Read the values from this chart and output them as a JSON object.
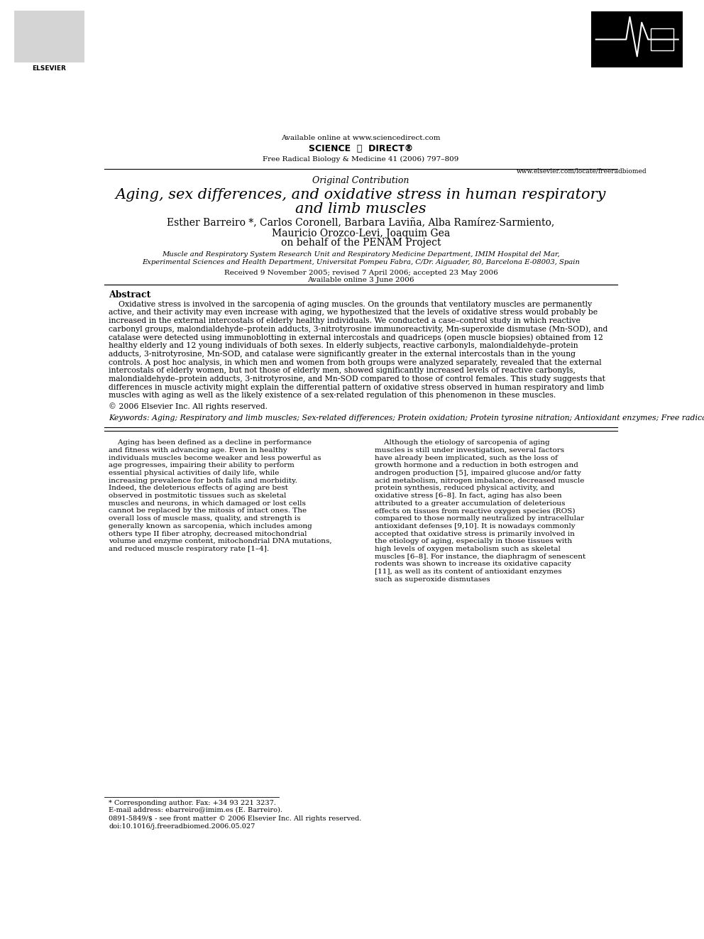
{
  "bg_color": "#ffffff",
  "header_available": "Available online at www.sciencedirect.com",
  "header_journal": "Free Radical Biology & Medicine 41 (2006) 797–809",
  "header_website": "www.elsevier.com/locate/freeradbiomed",
  "section_label": "Original Contribution",
  "title_line1": "Aging, sex differences, and oxidative stress in human respiratory",
  "title_line2": "and limb muscles",
  "authors_line1": "Esther Barreiro *, Carlos Coronell, Barbara Laviña, Alba Ramírez-Sarmiento,",
  "authors_line2": "Mauricio Orozco-Levi, Joaquim Gea",
  "authors_line3": "on behalf of the PENAM Project",
  "affil_line1": "Muscle and Respiratory System Research Unit and Respiratory Medicine Department, IMIM Hospital del Mar,",
  "affil_line2": "Experimental Sciences and Health Department, Universitat Pompeu Fabra, C/Dr. Aiguader, 80, Barcelona E-08003, Spain",
  "received": "Received 9 November 2005; revised 7 April 2006; accepted 23 May 2006",
  "available": "Available online 3 June 2006",
  "abstract_title": "Abstract",
  "abstract_text": "    Oxidative stress is involved in the sarcopenia of aging muscles. On the grounds that ventilatory muscles are permanently active, and their activity may even increase with aging, we hypothesized that the levels of oxidative stress would probably be increased in the external intercostals of elderly healthy individuals. We conducted a case–control study in which reactive carbonyl groups, malondialdehyde–protein adducts, 3-nitrotyrosine immunoreactivity, Mn-superoxide dismutase (Mn-SOD), and catalase were detected using immunoblotting in external intercostals and quadriceps (open muscle biopsies) obtained from 12 healthy elderly and 12 young individuals of both sexes. In elderly subjects, reactive carbonyls, malondialdehyde–protein adducts, 3-nitrotyrosine, Mn-SOD, and catalase were significantly greater in the external intercostals than in the young controls. A post hoc analysis, in which men and women from both groups were analyzed separately, revealed that the external intercostals of elderly women, but not those of elderly men, showed significantly increased levels of reactive carbonyls, malondialdehyde–protein adducts, 3-nitrotyrosine, and Mn-SOD compared to those of control females. This study suggests that differences in muscle activity might explain the differential pattern of oxidative stress observed in human respiratory and limb muscles with aging as well as the likely existence of a sex-related regulation of this phenomenon in these muscles.",
  "copyright": "© 2006 Elsevier Inc. All rights reserved.",
  "keywords": "Keywords: Aging; Respiratory and limb muscles; Sex-related differences; Protein oxidation; Protein tyrosine nitration; Antioxidant enzymes; Free radicals",
  "body_left_col": "    Aging has been defined as a decline in performance and fitness with advancing age. Even in healthy individuals muscles become weaker and less powerful as age progresses, impairing their ability to perform essential physical activities of daily life, while increasing prevalence for both falls and morbidity. Indeed, the deleterious effects of aging are best observed in postmitotic tissues such as skeletal muscles and neurons, in which damaged or lost cells cannot be replaced by the mitosis of intact ones. The overall loss of muscle mass, quality, and strength is generally known as sarcopenia, which includes among others type II fiber atrophy, decreased mitochondrial volume and enzyme content, mitochondrial DNA mutations, and reduced muscle respiratory rate [1–4].",
  "body_right_col": "    Although the etiology of sarcopenia of aging muscles is still under investigation, several factors have already been implicated, such as the loss of growth hormone and a reduction in both estrogen and androgen production [5], impaired glucose and/or fatty acid metabolism, nitrogen imbalance, decreased muscle protein synthesis, reduced physical activity, and oxidative stress [6–8]. In fact, aging has also been attributed to a greater accumulation of deleterious effects on tissues from reactive oxygen species (ROS) compared to those normally neutralized by intracellular antioxidant defenses [9,10]. It is nowadays commonly accepted that oxidative stress is primarily involved in the etiology of aging, especially in those tissues with high levels of oxygen metabolism such as skeletal muscles [6–8]. For instance, the diaphragm of senescent rodents was shown to increase its oxidative capacity [11], as well as its content of antioxidant enzymes such as superoxide dismutases",
  "footnote_star": "* Corresponding author. Fax: +34 93 221 3237.",
  "footnote_email": "E-mail address: ebarreiro@imim.es (E. Barreiro).",
  "footnote_issn": "0891-5849/$ - see front matter © 2006 Elsevier Inc. All rights reserved.",
  "footnote_doi": "doi:10.1016/j.freeradbiomed.2006.05.027"
}
